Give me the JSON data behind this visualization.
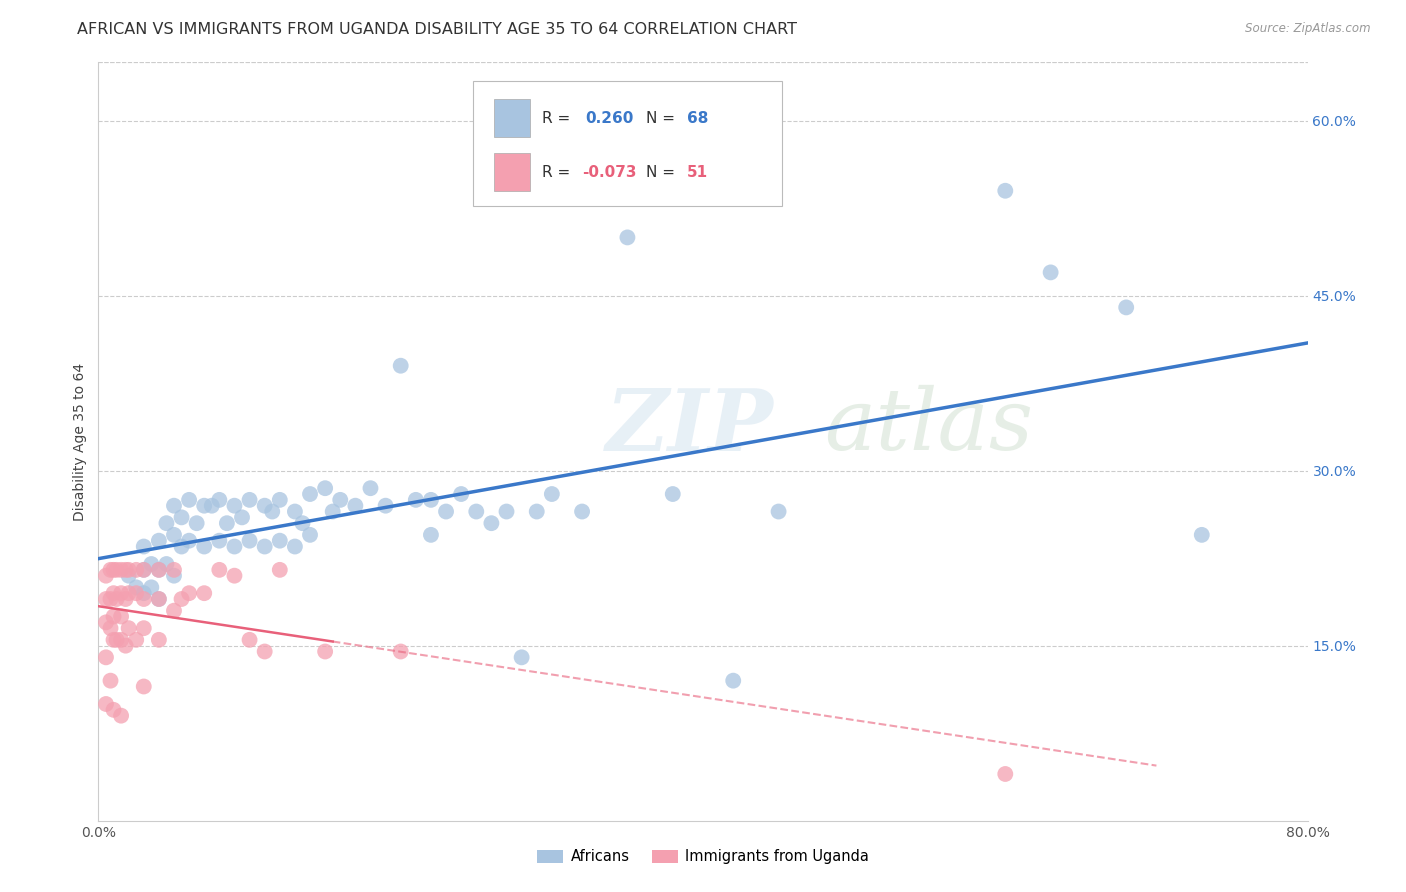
{
  "title": "AFRICAN VS IMMIGRANTS FROM UGANDA DISABILITY AGE 35 TO 64 CORRELATION CHART",
  "source": "Source: ZipAtlas.com",
  "ylabel": "Disability Age 35 to 64",
  "xlim": [
    0.0,
    0.8
  ],
  "ylim": [
    0.0,
    0.65
  ],
  "grid_color": "#cccccc",
  "background_color": "#ffffff",
  "african_color": "#a8c4e0",
  "uganda_color": "#f4a0b0",
  "african_line_color": "#3a78c9",
  "uganda_line_color": "#e8607a",
  "R_african": "0.260",
  "N_african": "68",
  "R_uganda": "-0.073",
  "N_uganda": "51",
  "legend_african_label": "Africans",
  "legend_uganda_label": "Immigrants from Uganda",
  "watermark_zip": "ZIP",
  "watermark_atlas": "atlas",
  "african_x": [
    0.02,
    0.025,
    0.03,
    0.03,
    0.03,
    0.035,
    0.035,
    0.04,
    0.04,
    0.04,
    0.045,
    0.045,
    0.05,
    0.05,
    0.05,
    0.055,
    0.055,
    0.06,
    0.06,
    0.065,
    0.07,
    0.07,
    0.075,
    0.08,
    0.08,
    0.085,
    0.09,
    0.09,
    0.095,
    0.1,
    0.1,
    0.11,
    0.11,
    0.115,
    0.12,
    0.12,
    0.13,
    0.13,
    0.135,
    0.14,
    0.14,
    0.15,
    0.155,
    0.16,
    0.17,
    0.18,
    0.19,
    0.2,
    0.21,
    0.22,
    0.22,
    0.23,
    0.24,
    0.25,
    0.26,
    0.27,
    0.28,
    0.29,
    0.3,
    0.32,
    0.35,
    0.38,
    0.42,
    0.45,
    0.6,
    0.63,
    0.68,
    0.73
  ],
  "african_y": [
    0.21,
    0.2,
    0.235,
    0.215,
    0.195,
    0.22,
    0.2,
    0.24,
    0.215,
    0.19,
    0.255,
    0.22,
    0.27,
    0.245,
    0.21,
    0.26,
    0.235,
    0.275,
    0.24,
    0.255,
    0.27,
    0.235,
    0.27,
    0.275,
    0.24,
    0.255,
    0.27,
    0.235,
    0.26,
    0.275,
    0.24,
    0.27,
    0.235,
    0.265,
    0.275,
    0.24,
    0.265,
    0.235,
    0.255,
    0.28,
    0.245,
    0.285,
    0.265,
    0.275,
    0.27,
    0.285,
    0.27,
    0.39,
    0.275,
    0.275,
    0.245,
    0.265,
    0.28,
    0.265,
    0.255,
    0.265,
    0.14,
    0.265,
    0.28,
    0.265,
    0.5,
    0.28,
    0.12,
    0.265,
    0.54,
    0.47,
    0.44,
    0.245
  ],
  "uganda_x": [
    0.005,
    0.005,
    0.005,
    0.005,
    0.005,
    0.008,
    0.008,
    0.008,
    0.008,
    0.01,
    0.01,
    0.01,
    0.01,
    0.01,
    0.012,
    0.012,
    0.012,
    0.015,
    0.015,
    0.015,
    0.015,
    0.015,
    0.018,
    0.018,
    0.018,
    0.02,
    0.02,
    0.02,
    0.025,
    0.025,
    0.025,
    0.03,
    0.03,
    0.03,
    0.03,
    0.04,
    0.04,
    0.04,
    0.05,
    0.05,
    0.055,
    0.06,
    0.07,
    0.08,
    0.09,
    0.1,
    0.11,
    0.12,
    0.15,
    0.2,
    0.6
  ],
  "uganda_y": [
    0.21,
    0.19,
    0.17,
    0.14,
    0.1,
    0.215,
    0.19,
    0.165,
    0.12,
    0.215,
    0.195,
    0.175,
    0.155,
    0.095,
    0.215,
    0.19,
    0.155,
    0.215,
    0.195,
    0.175,
    0.155,
    0.09,
    0.215,
    0.19,
    0.15,
    0.215,
    0.195,
    0.165,
    0.215,
    0.195,
    0.155,
    0.215,
    0.19,
    0.165,
    0.115,
    0.215,
    0.19,
    0.155,
    0.215,
    0.18,
    0.19,
    0.195,
    0.195,
    0.215,
    0.21,
    0.155,
    0.145,
    0.215,
    0.145,
    0.145,
    0.04
  ],
  "title_fontsize": 11.5,
  "axis_label_fontsize": 10,
  "tick_fontsize": 10
}
